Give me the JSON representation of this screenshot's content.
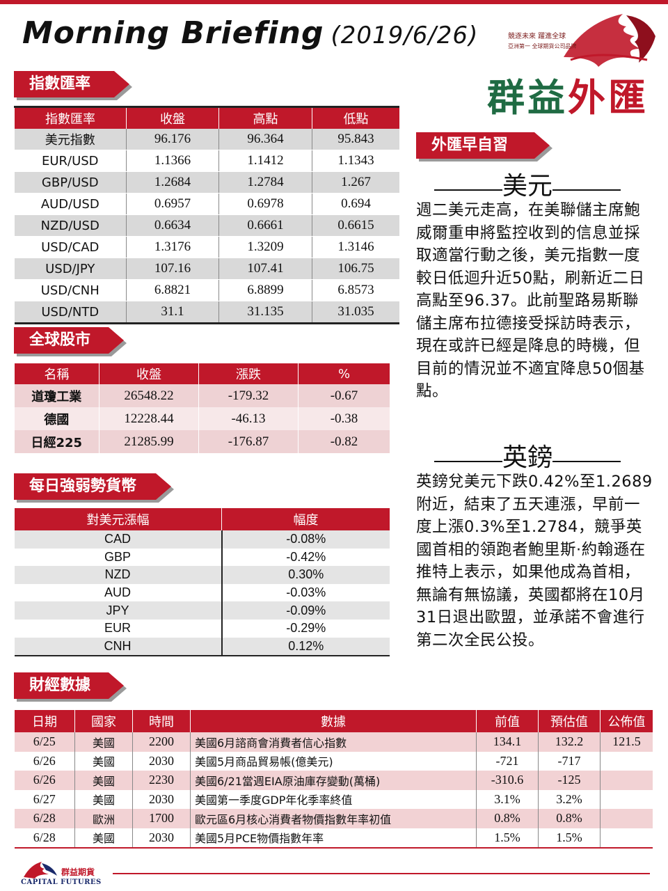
{
  "header": {
    "title": "Morning Briefing",
    "date": "(2019/6/26)",
    "slogan_line1": "競逐未來 躍進全球",
    "slogan_line2": "亞洲第一 全球期貨公司品牌",
    "brand_green": "群益",
    "brand_red": "外匯"
  },
  "colors": {
    "accent": "#c0182a",
    "brand_green": "#1f6b43",
    "footer_navy": "#1a2a6b"
  },
  "index_fx": {
    "tag": "指數匯率",
    "headers": [
      "指數匯率",
      "收盤",
      "高點",
      "低點"
    ],
    "rows": [
      [
        "美元指數",
        "96.176",
        "96.364",
        "95.843"
      ],
      [
        "EUR/USD",
        "1.1366",
        "1.1412",
        "1.1343"
      ],
      [
        "GBP/USD",
        "1.2684",
        "1.2784",
        "1.267"
      ],
      [
        "AUD/USD",
        "0.6957",
        "0.6978",
        "0.694"
      ],
      [
        "NZD/USD",
        "0.6634",
        "0.6661",
        "0.6615"
      ],
      [
        "USD/CAD",
        "1.3176",
        "1.3209",
        "1.3146"
      ],
      [
        "USD/JPY",
        "107.16",
        "107.41",
        "106.75"
      ],
      [
        "USD/CNH",
        "6.8821",
        "6.8899",
        "6.8573"
      ],
      [
        "USD/NTD",
        "31.1",
        "31.135",
        "31.035"
      ]
    ]
  },
  "global_stocks": {
    "tag": "全球股市",
    "headers": [
      "名稱",
      "收盤",
      "漲跌",
      "%"
    ],
    "rows": [
      [
        "道瓊工業",
        "26548.22",
        "-179.32",
        "-0.67"
      ],
      [
        "德國",
        "12228.44",
        "-46.13",
        "-0.38"
      ],
      [
        "日經225",
        "21285.99",
        "-176.87",
        "-0.82"
      ]
    ]
  },
  "currency_strength": {
    "tag": "每日強弱勢貨幣",
    "headers": [
      "對美元漲幅",
      "幅度"
    ],
    "rows": [
      [
        "CAD",
        "-0.08%"
      ],
      [
        "GBP",
        "-0.42%"
      ],
      [
        "NZD",
        "0.30%"
      ],
      [
        "AUD",
        "-0.03%"
      ],
      [
        "JPY",
        "-0.09%"
      ],
      [
        "EUR",
        "-0.29%"
      ],
      [
        "CNH",
        "0.12%"
      ]
    ]
  },
  "econ_data": {
    "tag": "財經數據",
    "headers": [
      "日期",
      "國家",
      "時間",
      "數據",
      "前值",
      "預估值",
      "公佈值"
    ],
    "rows": [
      [
        "6/25",
        "美國",
        "2200",
        "美國6月諮商會消費者信心指數",
        "134.1",
        "132.2",
        "121.5"
      ],
      [
        "6/26",
        "美國",
        "2030",
        "美國5月商品貿易帳(億美元)",
        "-721",
        "-717",
        ""
      ],
      [
        "6/26",
        "美國",
        "2230",
        "美國6/21當週EIA原油庫存變動(萬桶)",
        "-310.6",
        "-125",
        ""
      ],
      [
        "6/27",
        "美國",
        "2030",
        "美國第一季度GDP年化季率終值",
        "3.1%",
        "3.2%",
        ""
      ],
      [
        "6/28",
        "歐洲",
        "1700",
        "歐元區6月核心消費者物價指數年率初值",
        "0.8%",
        "0.8%",
        ""
      ],
      [
        "6/28",
        "美國",
        "2030",
        "美國5月PCE物價指數年率",
        "1.5%",
        "1.5%",
        ""
      ]
    ]
  },
  "fx_study": {
    "tag": "外匯早自習",
    "usd_heading": "美元",
    "usd_text": "週二美元走高，在美聯儲主席鮑威爾重申將監控收到的信息並採取適當行動之後，美元指數一度較日低迴升近50點，刷新近二日高點至96.37。此前聖路易斯聯儲主席布拉德接受採訪時表示，現在或許已經是降息的時機，但目前的情況並不適宜降息50個基點。",
    "gbp_heading": "英鎊",
    "gbp_text": "英鎊兌美元下跌0.42%至1.2689附近，結束了五天連漲，早前一度上漲0.3%至1.2784，競爭英國首相的領跑者鮑里斯·約翰遜在推特上表示，如果他成為首相，無論有無協議，英國都將在10月31日退出歐盟，並承諾不會進行第二次全民公投。"
  },
  "footer": {
    "company_zh": "群益期貨",
    "company_en": "CAPITAL FUTURES"
  }
}
